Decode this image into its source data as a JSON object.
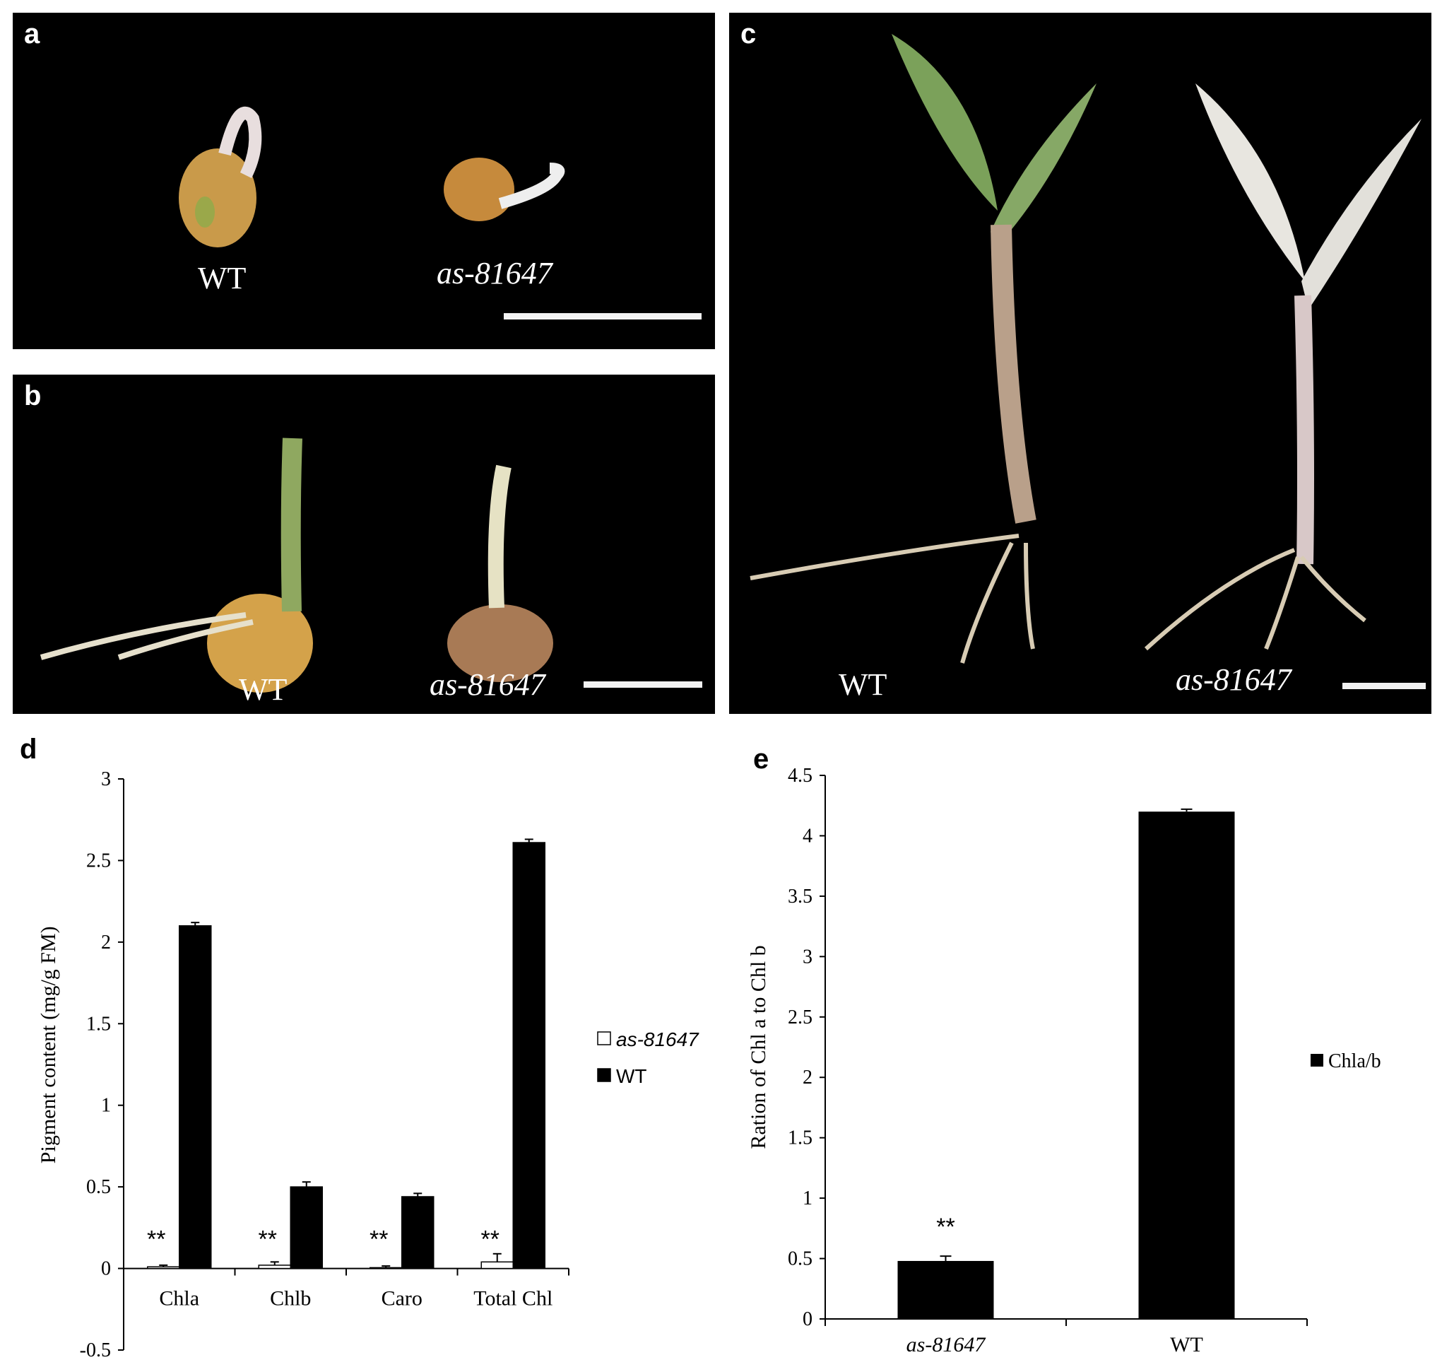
{
  "panels": {
    "a": {
      "letter": "a",
      "labels": [
        "WT",
        "as-81647"
      ]
    },
    "b": {
      "letter": "b",
      "labels": [
        "WT",
        "as-81647"
      ]
    },
    "c": {
      "letter": "c",
      "labels": [
        "WT",
        "as-81647"
      ]
    },
    "d": {
      "letter": "d"
    },
    "e": {
      "letter": "e"
    }
  },
  "chart_data": [
    {
      "panel": "d",
      "type": "bar",
      "title": "",
      "xlabel": "",
      "ylabel": "Pigment content (mg/g FM)",
      "ylim": [
        -0.5,
        3
      ],
      "yticks": [
        -0.5,
        0,
        0.5,
        1,
        1.5,
        2,
        2.5,
        3
      ],
      "categories": [
        "Chla",
        "Chlb",
        "Caro",
        "Total Chl"
      ],
      "series": [
        {
          "name": "as-81647",
          "values": [
            0.01,
            0.02,
            0.005,
            0.04
          ],
          "errors": [
            0.01,
            0.02,
            0.01,
            0.05
          ],
          "color": "#ffffff",
          "annotation": "**"
        },
        {
          "name": "WT",
          "values": [
            2.1,
            0.5,
            0.44,
            2.61
          ],
          "errors": [
            0.02,
            0.03,
            0.02,
            0.02
          ],
          "color": "#000000",
          "annotation": ""
        }
      ],
      "legend": "right"
    },
    {
      "panel": "e",
      "type": "bar",
      "title": "",
      "xlabel": "",
      "ylabel": "Ration of Chl a to Chl b",
      "ylim": [
        0,
        4.5
      ],
      "yticks": [
        0,
        0.5,
        1,
        1.5,
        2,
        2.5,
        3,
        3.5,
        4,
        4.5
      ],
      "categories": [
        "as-81647",
        "WT"
      ],
      "series": [
        {
          "name": "Chla/b",
          "values": [
            0.48,
            4.2
          ],
          "errors": [
            0.04,
            0.02
          ],
          "color": "#000000",
          "annotations": [
            "**",
            ""
          ]
        }
      ],
      "legend": "right"
    }
  ]
}
